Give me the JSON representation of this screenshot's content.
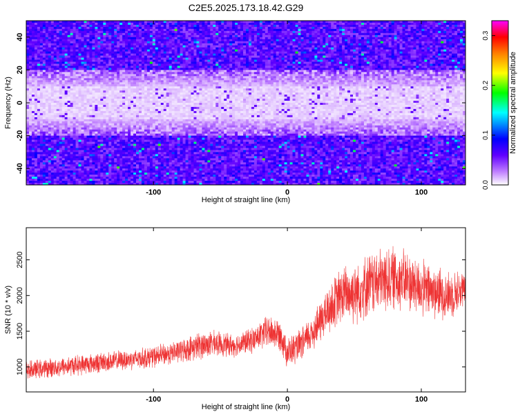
{
  "title": "C2E5.2025.173.18.42.G29",
  "chart_data": [
    {
      "type": "heatmap",
      "xlabel": "Height of straight line (km)",
      "ylabel": "Frequency (Hz)",
      "xlim": [
        -195,
        133
      ],
      "ylim": [
        -50,
        50
      ],
      "xticks": [
        -100,
        0,
        100
      ],
      "yticks": [
        -40,
        -20,
        0,
        20,
        40
      ],
      "colorbar": {
        "label": "Normalized spectral amplitude",
        "range": [
          0,
          0.33
        ],
        "ticks": [
          0.0,
          0.1,
          0.2,
          0.3
        ],
        "colormap": [
          "#ffffff",
          "#c080ff",
          "#6000ff",
          "#0000ff",
          "#0080ff",
          "#00ffff",
          "#00ff00",
          "#ffff00",
          "#ff8000",
          "#ff0000",
          "#ff00ff"
        ]
      },
      "description_values": {
        "center_band_hz": [
          -12,
          12
        ],
        "center_amplitude": 0.02,
        "edge_amplitude": 0.08
      }
    },
    {
      "type": "line",
      "xlabel": "Height of straight line (km)",
      "ylabel": "SNR (10 * v/v)",
      "xlim": [
        -195,
        133
      ],
      "ylim": [
        650,
        2950
      ],
      "xticks": [
        -100,
        0,
        100
      ],
      "yticks": [
        1000,
        1500,
        2000,
        2500
      ],
      "series_color": "#ee3333",
      "envelope": {
        "x": [
          -195,
          -180,
          -160,
          -140,
          -120,
          -100,
          -80,
          -65,
          -55,
          -40,
          -25,
          -15,
          -5,
          0,
          10,
          20,
          30,
          40,
          50,
          60,
          70,
          80,
          90,
          100,
          110,
          120,
          133
        ],
        "mean": [
          950,
          980,
          1020,
          1060,
          1100,
          1140,
          1220,
          1300,
          1330,
          1300,
          1380,
          1500,
          1450,
          1200,
          1300,
          1520,
          1780,
          2000,
          2050,
          2150,
          2200,
          2250,
          2200,
          2100,
          2050,
          2000,
          2100
        ],
        "amp": [
          150,
          150,
          160,
          160,
          160,
          170,
          180,
          220,
          200,
          180,
          200,
          260,
          250,
          250,
          250,
          300,
          380,
          450,
          500,
          500,
          520,
          500,
          480,
          450,
          420,
          380,
          300
        ]
      }
    }
  ]
}
